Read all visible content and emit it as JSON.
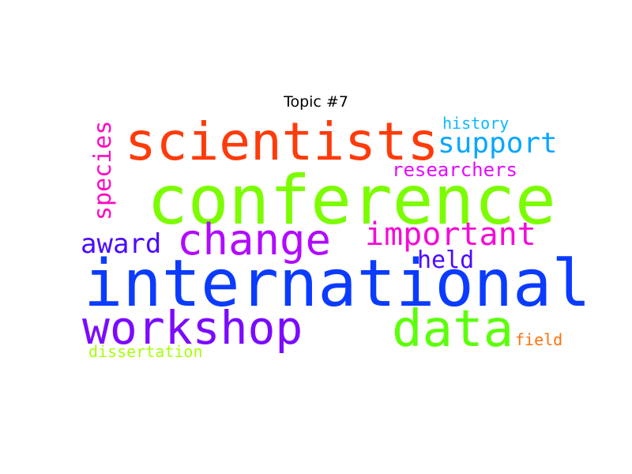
{
  "chart_data": {
    "type": "wordcloud",
    "title": "Topic #7",
    "words": [
      {
        "text": "conference",
        "color": "#7cfc00"
      },
      {
        "text": "international",
        "color": "#0b3bff"
      },
      {
        "text": "scientists",
        "color": "#ff3b0b"
      },
      {
        "text": "workshop",
        "color": "#7b0bff"
      },
      {
        "text": "data",
        "color": "#5cff0b"
      },
      {
        "text": "change",
        "color": "#b10bff"
      },
      {
        "text": "important",
        "color": "#f50bd7"
      },
      {
        "text": "support",
        "color": "#0ba6ff"
      },
      {
        "text": "species",
        "color": "#ff0bc0"
      },
      {
        "text": "award",
        "color": "#4a0bff"
      },
      {
        "text": "researchers",
        "color": "#e30bff"
      },
      {
        "text": "held",
        "color": "#4c0bff"
      },
      {
        "text": "history",
        "color": "#0bb8ff"
      },
      {
        "text": "field",
        "color": "#ff700b"
      },
      {
        "text": "dissertation",
        "color": "#a6ff0b"
      }
    ]
  }
}
